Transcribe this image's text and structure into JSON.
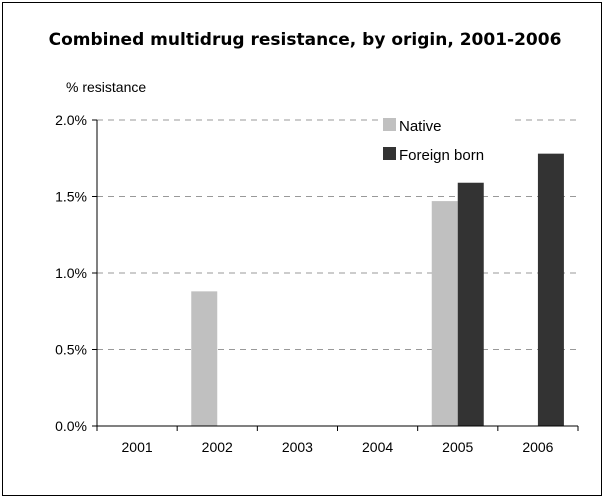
{
  "chart_data": {
    "type": "bar",
    "title": "Combined multidrug resistance, by origin, 2001-2006",
    "ylabel": "% resistance",
    "xlabel": "",
    "categories": [
      "2001",
      "2002",
      "2003",
      "2004",
      "2005",
      "2006"
    ],
    "series": [
      {
        "name": "Native",
        "color": "#c0c0c0",
        "values": [
          null,
          0.88,
          null,
          null,
          1.47,
          null
        ]
      },
      {
        "name": "Foreign born",
        "color": "#333333",
        "values": [
          null,
          null,
          null,
          null,
          1.59,
          1.78
        ]
      }
    ],
    "ylim": [
      0,
      2.0
    ],
    "yticks": [
      0,
      0.5,
      1.0,
      1.5,
      2.0
    ],
    "ytick_labels": [
      "0.0%",
      "0.5%",
      "1.0%",
      "1.5%",
      "2.0%"
    ],
    "grid": true,
    "grid_style": "dashed",
    "legend_position": "top-right"
  }
}
